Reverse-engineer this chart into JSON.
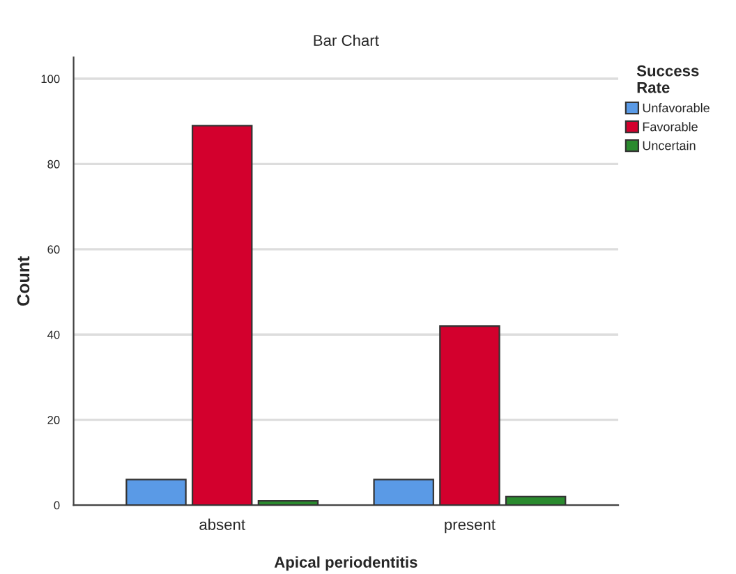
{
  "chart_data": {
    "type": "bar",
    "title": "Bar Chart",
    "xlabel": "Apical periodentitis",
    "ylabel": "Count",
    "legend_title": "Success\nRate",
    "categories": [
      "absent",
      "present"
    ],
    "series": [
      {
        "name": "Unfavorable",
        "color": "#5a9ae6",
        "values": [
          6,
          6
        ]
      },
      {
        "name": "Favorable",
        "color": "#d3002d",
        "values": [
          89,
          42
        ]
      },
      {
        "name": "Uncertain",
        "color": "#2a8a2e",
        "values": [
          1,
          2
        ]
      }
    ],
    "ylim": [
      0,
      105
    ],
    "yticks": [
      0,
      20,
      40,
      60,
      80,
      100
    ],
    "grid": "y",
    "legend": "right"
  }
}
